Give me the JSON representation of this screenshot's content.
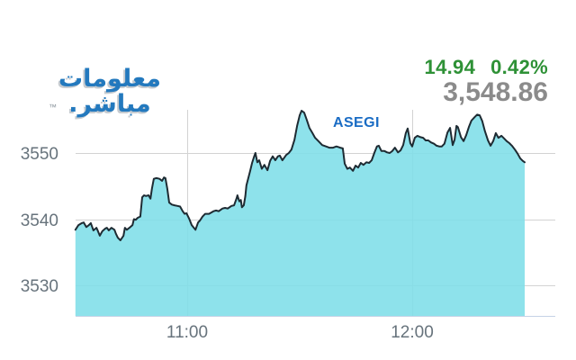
{
  "logo": {
    "line1": "معلومات",
    "line2": "مباشر.",
    "trademark": "™"
  },
  "quote": {
    "change": "14.94",
    "change_percent": "0.42%",
    "last": "3,548.86"
  },
  "colors": {
    "logo_blue": "#2379BE",
    "logo_shadow": "#c6cbd0",
    "tm_gray": "#8a949c",
    "change_green": "#2E9136",
    "last_gray": "#8B8B8B",
    "series_label_blue": "#1A6CC4",
    "area_fill": "#7EDEE8",
    "line_dark": "#1E2B33",
    "grid_gray": "#D3D3D3",
    "axis_line": "#C5D3E6",
    "tick_text": "#67737C"
  },
  "chart_data": {
    "type": "area",
    "series_label": "ASEGI",
    "title": "",
    "xlabel": "",
    "ylabel": "",
    "grid": true,
    "legend": "none",
    "x_ticks": [
      {
        "label": "11:00",
        "minutes": 660
      },
      {
        "label": "12:00",
        "minutes": 720
      }
    ],
    "y_ticks": [
      3550,
      3540,
      3530
    ],
    "x_range_minutes": [
      630.2,
      750
    ],
    "ylim": [
      3525.4,
      3557
    ],
    "last_value": 3548.86,
    "change_value": 14.94,
    "change_percent_value": 0.42,
    "points": [
      [
        630.2,
        3538.4
      ],
      [
        631,
        3539.1
      ],
      [
        631.9,
        3539.4
      ],
      [
        632.4,
        3539.5
      ],
      [
        633.1,
        3538.8
      ],
      [
        633.8,
        3539.1
      ],
      [
        634.3,
        3539.4
      ],
      [
        635,
        3538.3
      ],
      [
        635.8,
        3538.7
      ],
      [
        636.2,
        3538.2
      ],
      [
        636.7,
        3537.5
      ],
      [
        637.4,
        3538.2
      ],
      [
        638.2,
        3538.6
      ],
      [
        638.6,
        3538.7
      ],
      [
        639.1,
        3538.3
      ],
      [
        639.8,
        3538.7
      ],
      [
        640.6,
        3538.4
      ],
      [
        641,
        3537.8
      ],
      [
        641.5,
        3537.2
      ],
      [
        642.2,
        3536.8
      ],
      [
        643,
        3537.5
      ],
      [
        643.4,
        3538.7
      ],
      [
        643.9,
        3538.4
      ],
      [
        644.6,
        3538.7
      ],
      [
        645.4,
        3539.1
      ],
      [
        645.8,
        3540
      ],
      [
        646.3,
        3539.9
      ],
      [
        646.8,
        3540.2
      ],
      [
        647.5,
        3540.4
      ],
      [
        648,
        3543.3
      ],
      [
        648.5,
        3543.6
      ],
      [
        649,
        3543.5
      ],
      [
        649.7,
        3543.6
      ],
      [
        650.2,
        3543.1
      ],
      [
        650.6,
        3544.6
      ],
      [
        651.1,
        3546.1
      ],
      [
        651.8,
        3546.2
      ],
      [
        652.6,
        3546.1
      ],
      [
        653.3,
        3545.8
      ],
      [
        653.8,
        3546.3
      ],
      [
        654.2,
        3546.2
      ],
      [
        654.7,
        3544.6
      ],
      [
        655.2,
        3542.5
      ],
      [
        655.9,
        3542.2
      ],
      [
        656.6,
        3542.1
      ],
      [
        657.4,
        3542
      ],
      [
        658.1,
        3541.9
      ],
      [
        658.8,
        3541.2
      ],
      [
        659.3,
        3540.8
      ],
      [
        659.8,
        3540.9
      ],
      [
        660.5,
        3540.1
      ],
      [
        661.2,
        3539.1
      ],
      [
        662.2,
        3538.4
      ],
      [
        662.9,
        3539.5
      ],
      [
        663.4,
        3539.8
      ],
      [
        664.1,
        3540.4
      ],
      [
        664.8,
        3540.8
      ],
      [
        665.8,
        3540.8
      ],
      [
        667,
        3541.2
      ],
      [
        667.7,
        3541.3
      ],
      [
        668.4,
        3541.2
      ],
      [
        669.4,
        3541.6
      ],
      [
        670.1,
        3541.7
      ],
      [
        670.8,
        3541.6
      ],
      [
        671.8,
        3542
      ],
      [
        672.5,
        3542.1
      ],
      [
        673.2,
        3543.2
      ],
      [
        673.4,
        3543.6
      ],
      [
        673.9,
        3542.7
      ],
      [
        674.3,
        3542.9
      ],
      [
        674.6,
        3541.8
      ],
      [
        675.1,
        3542.1
      ],
      [
        675.5,
        3543.5
      ],
      [
        675.8,
        3545.1
      ],
      [
        676.3,
        3546.2
      ],
      [
        676.8,
        3547.3
      ],
      [
        677.3,
        3548.5
      ],
      [
        677.8,
        3549.4
      ],
      [
        678.2,
        3550
      ],
      [
        678.7,
        3548.6
      ],
      [
        679.2,
        3548.9
      ],
      [
        679.9,
        3547.6
      ],
      [
        680.6,
        3548.2
      ],
      [
        681.4,
        3547.4
      ],
      [
        682.1,
        3548.8
      ],
      [
        682.8,
        3549.5
      ],
      [
        683.5,
        3548.9
      ],
      [
        684.2,
        3549.5
      ],
      [
        684.7,
        3549.6
      ],
      [
        685.4,
        3548.9
      ],
      [
        686.4,
        3549.7
      ],
      [
        687.1,
        3550
      ],
      [
        687.8,
        3550.5
      ],
      [
        688.6,
        3552
      ],
      [
        689.3,
        3554.1
      ],
      [
        690,
        3555.7
      ],
      [
        690.5,
        3556.4
      ],
      [
        691.2,
        3556.1
      ],
      [
        691.9,
        3555
      ],
      [
        692.6,
        3553.8
      ],
      [
        693.4,
        3553
      ],
      [
        694.1,
        3552.3
      ],
      [
        695,
        3551.8
      ],
      [
        696,
        3551.2
      ],
      [
        697,
        3551
      ],
      [
        697.9,
        3550.8
      ],
      [
        698.9,
        3550.8
      ],
      [
        699.8,
        3551
      ],
      [
        700.8,
        3550.8
      ],
      [
        701.5,
        3550.7
      ],
      [
        702,
        3548.4
      ],
      [
        702.7,
        3547.6
      ],
      [
        703.4,
        3547.8
      ],
      [
        704.2,
        3547.3
      ],
      [
        704.9,
        3548.1
      ],
      [
        705.6,
        3547.8
      ],
      [
        706.3,
        3548.5
      ],
      [
        707,
        3548.2
      ],
      [
        707.8,
        3548.6
      ],
      [
        708.5,
        3548.5
      ],
      [
        709.2,
        3548.9
      ],
      [
        709.9,
        3550
      ],
      [
        710.6,
        3551
      ],
      [
        711.1,
        3551.1
      ],
      [
        711.8,
        3550.3
      ],
      [
        712.6,
        3550.3
      ],
      [
        713.3,
        3550.1
      ],
      [
        714,
        3550
      ],
      [
        714.7,
        3550.3
      ],
      [
        715.4,
        3550.8
      ],
      [
        716.2,
        3550.1
      ],
      [
        716.9,
        3550.4
      ],
      [
        717.6,
        3551.2
      ],
      [
        718.3,
        3553
      ],
      [
        718.8,
        3553.7
      ],
      [
        719.5,
        3551.5
      ],
      [
        720,
        3551
      ],
      [
        720.7,
        3552.3
      ],
      [
        721.4,
        3552.6
      ],
      [
        722.2,
        3552.4
      ],
      [
        722.9,
        3552.3
      ],
      [
        723.6,
        3551.9
      ],
      [
        724.3,
        3551.9
      ],
      [
        725,
        3551.6
      ],
      [
        725.8,
        3551.4
      ],
      [
        726.5,
        3551.1
      ],
      [
        727.2,
        3551
      ],
      [
        727.9,
        3551
      ],
      [
        728.6,
        3551.4
      ],
      [
        729.4,
        3553.1
      ],
      [
        730.1,
        3553.8
      ],
      [
        730.8,
        3551.2
      ],
      [
        731.3,
        3552
      ],
      [
        731.8,
        3554.1
      ],
      [
        732.2,
        3553.9
      ],
      [
        733,
        3552.4
      ],
      [
        733.7,
        3551.8
      ],
      [
        734.4,
        3552.7
      ],
      [
        735.1,
        3553.9
      ],
      [
        735.8,
        3554.9
      ],
      [
        736.6,
        3555.4
      ],
      [
        737.3,
        3555.8
      ],
      [
        738,
        3555.7
      ],
      [
        738.7,
        3554.8
      ],
      [
        739.4,
        3553.3
      ],
      [
        740.2,
        3551.9
      ],
      [
        740.9,
        3551.1
      ],
      [
        741.6,
        3551.8
      ],
      [
        742.3,
        3553
      ],
      [
        743,
        3552.3
      ],
      [
        743.8,
        3552.6
      ],
      [
        744.5,
        3552.2
      ],
      [
        745.2,
        3551.8
      ],
      [
        745.9,
        3551.5
      ],
      [
        746.6,
        3551.1
      ],
      [
        747.4,
        3550.5
      ],
      [
        748.1,
        3549.9
      ],
      [
        748.8,
        3549.2
      ],
      [
        749.5,
        3548.8
      ],
      [
        750,
        3548.6
      ]
    ]
  }
}
